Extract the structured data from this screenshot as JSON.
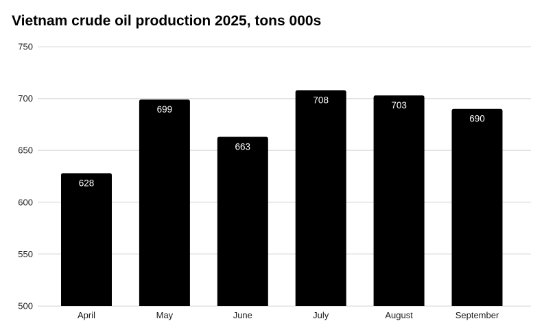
{
  "chart_data": {
    "type": "bar",
    "title": "Vietnam crude oil production 2025, tons 000s",
    "categories": [
      "April",
      "May",
      "June",
      "July",
      "August",
      "September"
    ],
    "values": [
      628,
      699,
      663,
      708,
      703,
      690
    ],
    "xlabel": "",
    "ylabel": "",
    "ylim": [
      500,
      750
    ],
    "yticks": [
      500,
      550,
      600,
      650,
      700,
      750
    ],
    "grid": true,
    "legend": "none",
    "colors": {
      "bar": "#000000",
      "bar_value_label": "#ffffff",
      "grid_line": "#e2e2e2",
      "axis_tick_label": "#1a1a1a",
      "title": "#000000",
      "background": "#ffffff"
    }
  }
}
